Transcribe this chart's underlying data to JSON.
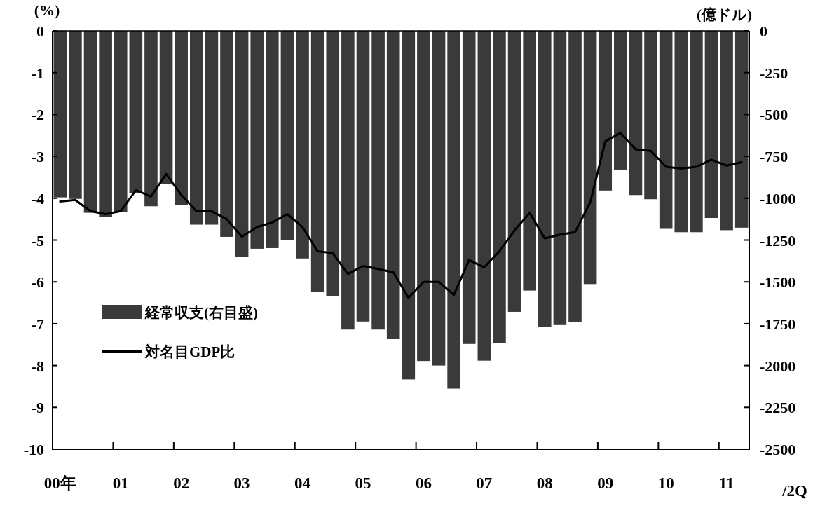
{
  "chart_data": {
    "type": "bar",
    "ylabel": "(%)",
    "y2label": "(億ドル)",
    "categories": [
      "00年",
      null,
      null,
      null,
      "01",
      null,
      null,
      null,
      "02",
      null,
      null,
      null,
      "03",
      null,
      null,
      null,
      "04",
      null,
      null,
      null,
      "05",
      null,
      null,
      null,
      "06",
      null,
      null,
      null,
      "07",
      null,
      null,
      null,
      "08",
      null,
      null,
      null,
      "09",
      null,
      null,
      null,
      "10",
      null,
      null,
      null,
      "11",
      null
    ],
    "series": [
      {
        "name": "経常収支(右目盛)",
        "axis": "y2",
        "color": "#3a3a3a",
        "values": [
          -995,
          -1004,
          -1087,
          -1110,
          -1083,
          -971,
          -1048,
          -913,
          -1042,
          -1158,
          -1158,
          -1231,
          -1350,
          -1302,
          -1298,
          -1252,
          -1360,
          -1558,
          -1583,
          -1785,
          -1737,
          -1785,
          -1842,
          -2083,
          -1973,
          -2000,
          -2138,
          -1871,
          -1971,
          -1865,
          -1679,
          -1552,
          -1770,
          -1758,
          -1739,
          -1513,
          -954,
          -829,
          -981,
          -1006,
          -1183,
          -1203,
          -1203,
          -1118,
          -1191,
          -1176
        ]
      },
      {
        "name": "対名目GDP比",
        "type": "line",
        "color": "#000000",
        "values": [
          -4.08,
          -4.04,
          -4.31,
          -4.38,
          -4.31,
          -3.81,
          -3.96,
          -3.42,
          -3.92,
          -4.31,
          -4.31,
          -4.5,
          -4.92,
          -4.69,
          -4.58,
          -4.38,
          -4.69,
          -5.27,
          -5.31,
          -5.81,
          -5.62,
          -5.69,
          -5.77,
          -6.38,
          -6.0,
          -6.0,
          -6.31,
          -5.48,
          -5.65,
          -5.27,
          -4.77,
          -4.35,
          -4.96,
          -4.87,
          -4.81,
          -4.1,
          -2.64,
          -2.44,
          -2.83,
          -2.87,
          -3.25,
          -3.29,
          -3.25,
          -3.08,
          -3.22,
          -3.14
        ]
      }
    ],
    "ylim": [
      -10,
      0
    ],
    "yticks": [
      0,
      -1,
      -2,
      -3,
      -4,
      -5,
      -6,
      -7,
      -8,
      -9,
      -10
    ],
    "y2lim": [
      -2500,
      0
    ],
    "y2ticks": [
      0,
      -250,
      -500,
      -750,
      -1000,
      -1250,
      -1500,
      -1750,
      -2000,
      -2250,
      -2500
    ],
    "legend": "left",
    "annotations": [
      "/2Q"
    ]
  }
}
